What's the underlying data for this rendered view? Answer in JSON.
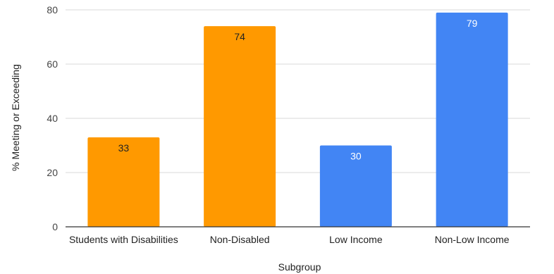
{
  "chart_data": {
    "type": "bar",
    "title": "",
    "xlabel": "Subgroup",
    "ylabel": "% Meeting or Exceeding",
    "ylim": [
      0,
      80
    ],
    "yticks": [
      0,
      20,
      40,
      60,
      80
    ],
    "grid": true,
    "categories": [
      "Students with Disabilities",
      "Non-Disabled",
      "Low Income",
      "Non-Low Income"
    ],
    "values": [
      33,
      74,
      30,
      79
    ],
    "data_labels": [
      "33",
      "74",
      "30",
      "79"
    ],
    "bar_colors": [
      "#ff9900",
      "#ff9900",
      "#4285f4",
      "#4285f4"
    ],
    "label_colors": [
      "#222222",
      "#222222",
      "#ffffff",
      "#ffffff"
    ],
    "grid_color": "#d9d9d9",
    "axis_color": "#333333"
  }
}
